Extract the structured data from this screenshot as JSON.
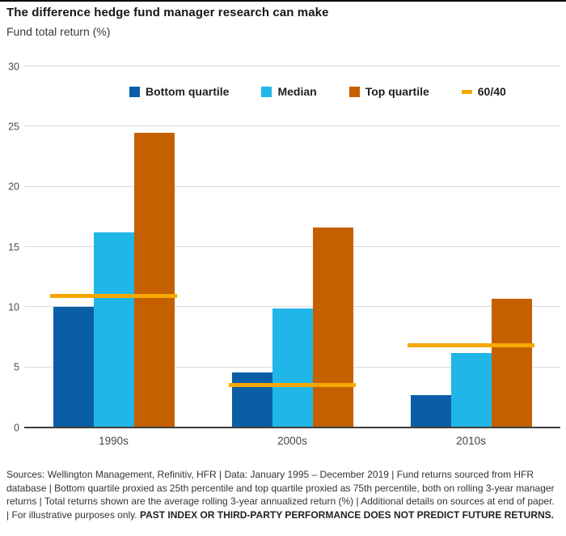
{
  "chart_data": {
    "type": "bar",
    "title": "The difference hedge fund manager research can make",
    "subtitle": "Fund total return (%)",
    "categories": [
      "1990s",
      "2000s",
      "2010s"
    ],
    "series": [
      {
        "name": "Bottom quartile",
        "color": "#0a5ea6",
        "values": [
          10.0,
          4.6,
          2.7
        ]
      },
      {
        "name": "Median",
        "color": "#20b6e8",
        "values": [
          16.2,
          9.9,
          6.2
        ]
      },
      {
        "name": "Top quartile",
        "color": "#c56000",
        "values": [
          24.5,
          16.6,
          10.7
        ]
      }
    ],
    "overlay_line": {
      "name": "60/40",
      "color": "#f6a800",
      "values": [
        10.9,
        3.5,
        6.8
      ]
    },
    "ylim": [
      0,
      30
    ],
    "yticks": [
      0,
      5,
      10,
      15,
      20,
      25,
      30
    ],
    "grid": true,
    "legend_position": "top",
    "xlabel": "",
    "ylabel": "Fund total return (%)"
  },
  "footer": {
    "text": "Sources: Wellington Management, Refinitiv, HFR  |  Data: January 1995 – December 2019  |  Fund returns sourced from HFR database  |  Bottom quartile proxied as 25th percentile and top quartile proxied as 75th percentile, both on rolling 3-year manager returns  |  Total returns shown are the average rolling 3-year annualized return (%)  |  Additional details on sources at end of paper.  |  For illustrative purposes only. ",
    "bold_text": "PAST INDEX OR THIRD-PARTY PERFORMANCE DOES NOT PREDICT FUTURE RETURNS."
  }
}
